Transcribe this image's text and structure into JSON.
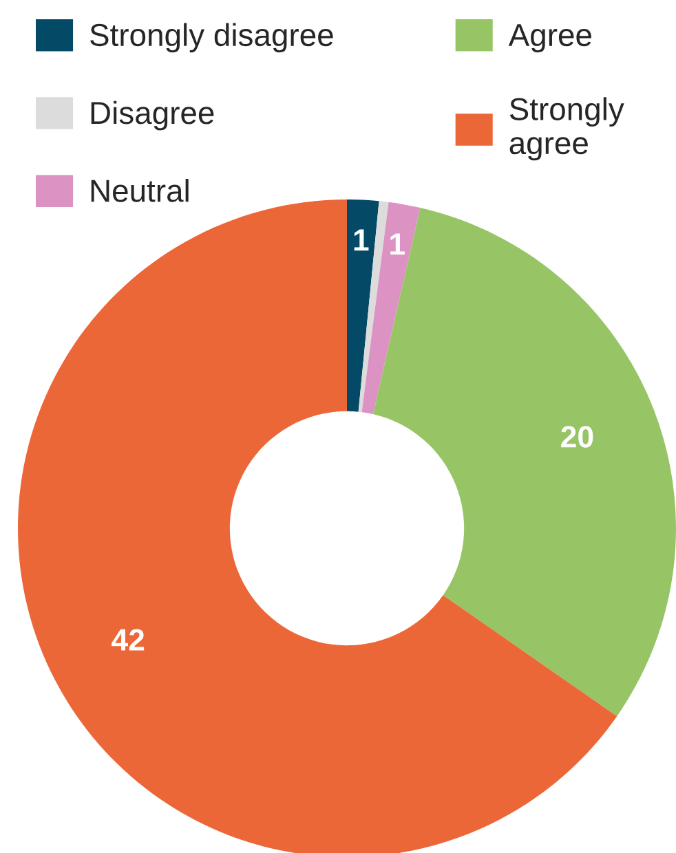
{
  "chart_data": {
    "type": "donut",
    "categories": [
      "Strongly disagree",
      "Disagree",
      "Neutral",
      "Agree",
      "Strongly\nagree"
    ],
    "values": [
      1,
      0.3,
      1,
      20,
      42
    ],
    "colors": [
      "#044a66",
      "#dcdcdc",
      "#dc93c3",
      "#97c566",
      "#ec6738"
    ],
    "value_labels": [
      "1",
      null,
      "1",
      "20",
      "42"
    ],
    "legend": "top left"
  }
}
